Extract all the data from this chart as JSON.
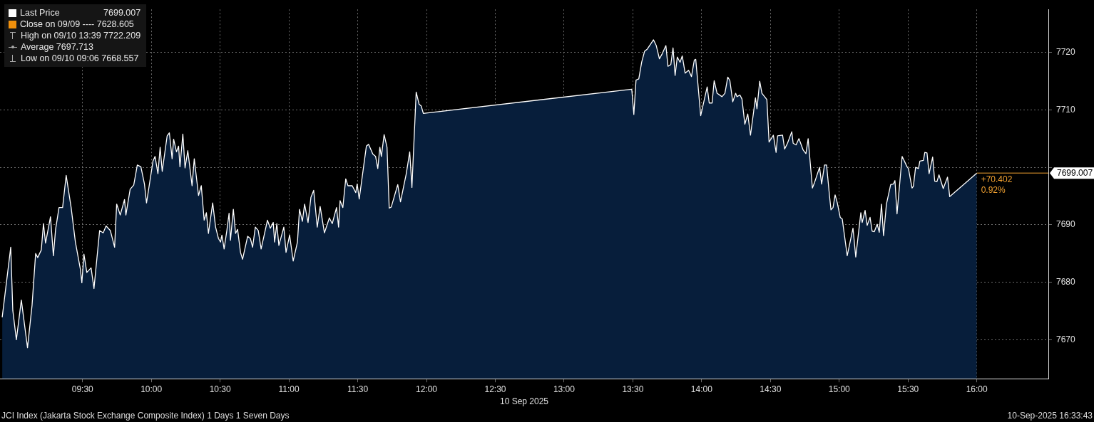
{
  "chart_data": {
    "type": "area",
    "xlabel": "10 Sep 2025",
    "legend": "top left",
    "grid": true,
    "marker": "none",
    "xlim": [
      8.9,
      16.52
    ],
    "xticks": [
      {
        "value": 9.5,
        "label": "09:30"
      },
      {
        "value": 10,
        "label": "10:00"
      },
      {
        "value": 10.5,
        "label": "10:30"
      },
      {
        "value": 11,
        "label": "11:00"
      },
      {
        "value": 11.5,
        "label": "11:30"
      },
      {
        "value": 12,
        "label": "12:00"
      },
      {
        "value": 12.5,
        "label": "12:30"
      },
      {
        "value": 13,
        "label": "13:00"
      },
      {
        "value": 13.5,
        "label": "13:30"
      },
      {
        "value": 14,
        "label": "14:00"
      },
      {
        "value": 14.5,
        "label": "14:30"
      },
      {
        "value": 15,
        "label": "15:00"
      },
      {
        "value": 15.5,
        "label": "15:30"
      },
      {
        "value": 16,
        "label": "16:00"
      }
    ],
    "ylim": [
      7663.2,
      7727.5
    ],
    "yticks": [
      7670,
      7680,
      7690,
      {
        "value": 7700,
        "label": null
      },
      7710,
      7720
    ],
    "ref_lines": [
      {
        "axis": "y",
        "value": 7699.007,
        "label": "7699.007",
        "color": "#f0a030"
      }
    ],
    "annotations": [
      "Close on 09/09 ---- 7628.605",
      "High on 09/10 13:39 7722.209",
      "Average 7697.713",
      "Low on 09/10 09:06 7668.557",
      "JCI Index (Jakarta Stock Exchange Composite Index) 1 Days 1 Seven Days",
      "10-Sep-2025 16:33:43",
      {
        "text": "+70.402",
        "x": 16.0,
        "y": 7699.007
      },
      {
        "text": "0.92%",
        "x": 16.0,
        "y": 7699.007
      }
    ],
    "series": [
      {
        "name": "Last Price",
        "color": "#ffffff",
        "x": [
          8.916,
          8.978,
          8.993,
          9.019,
          9.055,
          9.1,
          9.133,
          9.159,
          9.174,
          9.2,
          9.216,
          9.231,
          9.267,
          9.288,
          9.304,
          9.329,
          9.355,
          9.381,
          9.417,
          9.448,
          9.484,
          9.495,
          9.51,
          9.531,
          9.562,
          9.583,
          9.624,
          9.65,
          9.671,
          9.702,
          9.733,
          9.748,
          9.774,
          9.805,
          9.815,
          9.846,
          9.872,
          9.898,
          9.924,
          9.95,
          9.965,
          10.012,
          10.027,
          10.048,
          10.064,
          10.079,
          10.115,
          10.131,
          10.151,
          10.162,
          10.183,
          10.198,
          10.208,
          10.229,
          10.245,
          10.265,
          10.296,
          10.312,
          10.343,
          10.363,
          10.384,
          10.4,
          10.415,
          10.446,
          10.467,
          10.488,
          10.503,
          10.513,
          10.529,
          10.55,
          10.565,
          10.575,
          10.596,
          10.612,
          10.627,
          10.648,
          10.663,
          10.7,
          10.72,
          10.736,
          10.756,
          10.777,
          10.798,
          10.844,
          10.865,
          10.886,
          10.896,
          10.912,
          10.927,
          10.963,
          10.979,
          11.005,
          11.031,
          11.062,
          11.077,
          11.098,
          11.114,
          11.139,
          11.16,
          11.18,
          11.206,
          11.227,
          11.258,
          11.294,
          11.315,
          11.346,
          11.361,
          11.372,
          11.392,
          11.413,
          11.429,
          11.46,
          11.486,
          11.496,
          11.511,
          11.563,
          11.579,
          11.61,
          11.63,
          11.646,
          11.661,
          11.672,
          11.692,
          11.713,
          11.729,
          11.744,
          11.791,
          11.811,
          11.853,
          11.878,
          11.894,
          11.925,
          11.946,
          11.961,
          11.977,
          13.492,
          13.507,
          13.523,
          13.543,
          13.564,
          13.585,
          13.605,
          13.65,
          13.67,
          13.693,
          13.714,
          13.74,
          13.755,
          13.776,
          13.792,
          13.807,
          13.823,
          13.843,
          13.859,
          13.88,
          13.905,
          13.926,
          13.947,
          13.957,
          13.993,
          14.04,
          14.055,
          14.076,
          14.091,
          14.112,
          14.148,
          14.169,
          14.19,
          14.205,
          14.226,
          14.247,
          14.257,
          14.278,
          14.293,
          14.314,
          14.335,
          14.355,
          14.391,
          14.402,
          14.422,
          14.438,
          14.474,
          14.49,
          14.521,
          14.541,
          14.552,
          14.588,
          14.603,
          14.624,
          14.655,
          14.665,
          14.686,
          14.707,
          14.738,
          14.758,
          14.774,
          14.805,
          14.821,
          14.857,
          14.872,
          14.893,
          14.908,
          14.929,
          14.94,
          14.955,
          14.97,
          14.986,
          15.007,
          15.022,
          15.058,
          15.1,
          15.12,
          15.157,
          15.167,
          15.188,
          15.203,
          15.224,
          15.239,
          15.255,
          15.276,
          15.291,
          15.307,
          15.322,
          15.343,
          15.374,
          15.394,
          15.405,
          15.42,
          15.457,
          15.493,
          15.503,
          15.529,
          15.539,
          15.555,
          15.576,
          15.586,
          15.612,
          15.622,
          15.638,
          15.653,
          15.679,
          15.694,
          15.71,
          15.725,
          15.756,
          15.787,
          15.803,
          16.0
        ],
        "values": [
          7673.9,
          7686.1,
          7675.1,
          7670.0,
          7676.9,
          7668.6,
          7676.0,
          7685.0,
          7684.3,
          7685.6,
          7690.2,
          7686.8,
          7691.4,
          7684.6,
          7689.2,
          7693.0,
          7693.0,
          7698.6,
          7693.0,
          7687.0,
          7682.3,
          7679.9,
          7684.9,
          7681.7,
          7682.5,
          7678.9,
          7689.0,
          7688.6,
          7689.8,
          7689.0,
          7686.1,
          7693.6,
          7691.7,
          7694.4,
          7691.7,
          7696.2,
          7696.9,
          7700.4,
          7700.1,
          7697.1,
          7693.8,
          7701.1,
          7701.9,
          7698.9,
          7703.5,
          7699.3,
          7705.5,
          7706.0,
          7701.5,
          7704.9,
          7702.7,
          7703.7,
          7700.1,
          7705.8,
          7699.9,
          7702.9,
          7696.8,
          7701.5,
          7695.1,
          7696.8,
          7690.8,
          7692.1,
          7688.5,
          7693.8,
          7689.6,
          7687.6,
          7687.0,
          7688.2,
          7685.8,
          7689.2,
          7692.0,
          7687.3,
          7692.7,
          7688.5,
          7689.2,
          7685.2,
          7684.0,
          7688.0,
          7687.6,
          7686.1,
          7689.6,
          7689.0,
          7685.8,
          7690.8,
          7689.4,
          7690.4,
          7687.0,
          7690.2,
          7686.4,
          7689.6,
          7685.2,
          7688.2,
          7683.7,
          7687.0,
          7692.7,
          7690.6,
          7693.6,
          7690.4,
          7694.8,
          7696.0,
          7689.6,
          7693.2,
          7688.6,
          7691.2,
          7690.2,
          7693.0,
          7689.6,
          7694.2,
          7693.0,
          7698.0,
          7696.8,
          7696.8,
          7695.6,
          7697.1,
          7694.5,
          7703.7,
          7704.0,
          7702.3,
          7701.9,
          7699.8,
          7703.5,
          7701.9,
          7705.7,
          7703.5,
          7692.9,
          7693.1,
          7697.0,
          7694.0,
          7698.9,
          7702.7,
          7696.5,
          7713.1,
          7711.0,
          7710.7,
          7709.4,
          7713.6,
          7709.2,
          7715.2,
          7715.4,
          7718.3,
          7720.2,
          7720.6,
          7722.2,
          7721.2,
          7718.9,
          7719.8,
          7721.2,
          7717.6,
          7717.9,
          7720.8,
          7716.0,
          7719.2,
          7718.3,
          7719.4,
          7716.4,
          7716.9,
          7715.8,
          7718.7,
          7718.8,
          7709.0,
          7714.0,
          7711.2,
          7711.2,
          7715.1,
          7712.9,
          7712.3,
          7712.9,
          7715.7,
          7715.1,
          7711.4,
          7712.9,
          7712.3,
          7712.6,
          7711.9,
          7707.5,
          7709.3,
          7705.6,
          7712.1,
          7710.2,
          7715.0,
          7712.9,
          7711.8,
          7704.4,
          7705.6,
          7702.6,
          7705.5,
          7705.6,
          7703.2,
          7704.2,
          7706.2,
          7704.2,
          7703.9,
          7705.0,
          7703.0,
          7702.4,
          7705.0,
          7696.4,
          7697.4,
          7700.0,
          7697.1,
          7700.4,
          7700.4,
          7695.1,
          7692.6,
          7693.0,
          7695.2,
          7693.8,
          7691.3,
          7691.0,
          7684.6,
          7689.4,
          7684.4,
          7692.1,
          7690.4,
          7692.5,
          7689.9,
          7691.3,
          7688.9,
          7688.8,
          7690.1,
          7688.7,
          7693.6,
          7688.1,
          7693.6,
          7697.0,
          7697.1,
          7697.7,
          7691.9,
          7701.9,
          7700.1,
          7699.8,
          7696.4,
          7696.7,
          7700.0,
          7699.8,
          7701.1,
          7701.2,
          7702.6,
          7702.5,
          7698.9,
          7701.8,
          7697.6,
          7697.5,
          7698.7,
          7696.3,
          7698.3,
          7694.9,
          7699.0
        ]
      }
    ]
  }
}
